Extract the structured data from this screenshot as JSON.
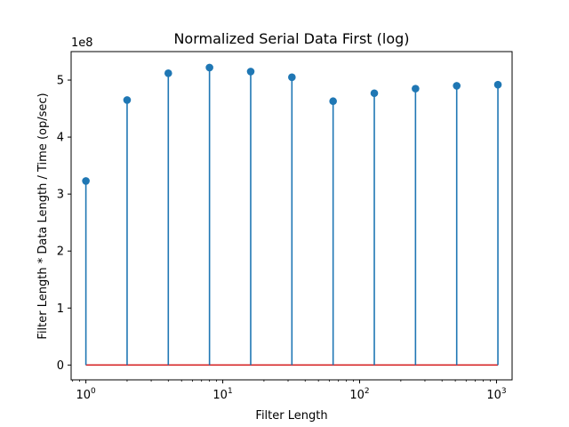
{
  "chart_data": {
    "type": "stem",
    "title": "Normalized Serial Data First (log)",
    "xlabel": "Filter Length",
    "ylabel": "Filter Length * Data Length / Time (op/sec)",
    "y_multiplier_label": "1e8",
    "xscale": "log",
    "xlim": [
      0.78,
      1300
    ],
    "ylim": [
      -0.26,
      5.5
    ],
    "y_unit_scale": 100000000,
    "x_ticks": [
      {
        "base": "10",
        "exp": "0",
        "value": 1
      },
      {
        "base": "10",
        "exp": "1",
        "value": 10
      },
      {
        "base": "10",
        "exp": "2",
        "value": 100
      },
      {
        "base": "10",
        "exp": "3",
        "value": 1000
      }
    ],
    "y_ticks": [
      {
        "label": "0",
        "value": 0
      },
      {
        "label": "1",
        "value": 1
      },
      {
        "label": "2",
        "value": 2
      },
      {
        "label": "3",
        "value": 3
      },
      {
        "label": "4",
        "value": 4
      },
      {
        "label": "5",
        "value": 5
      }
    ],
    "x": [
      1,
      2,
      4,
      8,
      16,
      32,
      64,
      128,
      256,
      512,
      1024
    ],
    "values": [
      3.23,
      4.65,
      5.12,
      5.22,
      5.15,
      5.05,
      4.63,
      4.77,
      4.85,
      4.9,
      4.92
    ],
    "baseline": 0,
    "grid": false,
    "colors": {
      "stem": "#1f77b4",
      "marker": "#1f77b4",
      "baseline": "#d62728",
      "axes": "#000000"
    }
  }
}
